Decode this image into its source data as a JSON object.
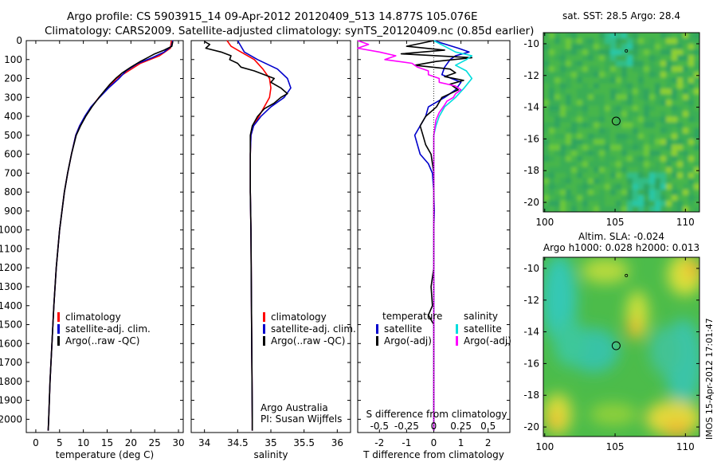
{
  "header": {
    "line1": "Argo profile: CS 5903915_14 09-Apr-2012 20120409_513 14.877S 105.076E",
    "line2": "Climatology: CARS2009. Satellite-adjusted climatology: synTS_20120409.nc (0.85d earlier)"
  },
  "side_stamp": "IMOS 15-Apr-2012 17:01:47",
  "colors": {
    "climatology": "#ff0000",
    "satellite": "#0000cc",
    "argo": "#000000",
    "argo_salinity_diff": "#ff00ff",
    "satellite_salinity_diff": "#00dddd"
  },
  "depth_axis": {
    "ticks": [
      0,
      100,
      200,
      300,
      400,
      500,
      600,
      700,
      800,
      900,
      1000,
      1100,
      1200,
      1300,
      1400,
      1500,
      1600,
      1700,
      1800,
      1900,
      2000
    ],
    "tick_labels": [
      "0",
      "100",
      "200",
      "300",
      "400",
      "500",
      "600",
      "700",
      "800",
      "900",
      "1000",
      "1100",
      "1200",
      "1300",
      "1400",
      "1500",
      "1600",
      "1700",
      "1800",
      "1900",
      "2000"
    ],
    "range": [
      0,
      2070
    ]
  },
  "chart_data": [
    {
      "type": "line",
      "title": "",
      "xlabel": "temperature (deg C)",
      "ylabel": "depth",
      "xlim": [
        -2,
        31
      ],
      "ylim": [
        2070,
        0
      ],
      "xticks": [
        0,
        5,
        10,
        15,
        20,
        25,
        30
      ],
      "xtick_labels": [
        "0",
        "5",
        "10",
        "15",
        "20",
        "25",
        "30"
      ],
      "legend": [
        "climatology",
        "satellite-adj. clim.",
        "Argo(..raw -QC)"
      ],
      "legend_position": "lower-center",
      "series": [
        {
          "name": "climatology",
          "color": "#ff0000",
          "depth": [
            0,
            40,
            80,
            120,
            160,
            200,
            250,
            300,
            350,
            400,
            450,
            500,
            600,
            700,
            800,
            1000,
            1200,
            1400,
            1600,
            1800,
            2000,
            2060
          ],
          "values": [
            28.5,
            28.3,
            26,
            22,
            19.5,
            17,
            15.2,
            13.3,
            11.7,
            10.4,
            9.2,
            8.4,
            7.5,
            6.7,
            6.0,
            5.0,
            4.3,
            3.8,
            3.4,
            3.0,
            2.7,
            2.6
          ]
        },
        {
          "name": "satellite-adj. clim.",
          "color": "#0000cc",
          "depth": [
            0,
            30,
            60,
            90,
            120,
            160,
            200,
            250,
            300,
            350,
            400,
            450,
            500,
            600,
            700,
            800,
            1000,
            1200,
            1400,
            1600,
            1800,
            2000,
            2060
          ],
          "values": [
            28.8,
            28.5,
            27,
            24.5,
            21.5,
            19,
            17.5,
            15.3,
            13.4,
            11.6,
            10.3,
            9.2,
            8.4,
            7.5,
            6.7,
            6.0,
            5.0,
            4.3,
            3.8,
            3.4,
            3.0,
            2.7,
            2.6
          ]
        },
        {
          "name": "Argo(..raw -QC)",
          "color": "#000000",
          "depth": [
            5,
            30,
            50,
            70,
            90,
            110,
            140,
            170,
            200,
            230,
            260,
            300,
            350,
            400,
            450,
            500,
            600,
            700,
            800,
            1000,
            1200,
            1400,
            1600,
            1800,
            2000,
            2060
          ],
          "values": [
            28.8,
            28.6,
            27,
            25,
            23.5,
            22,
            20,
            18.2,
            16.8,
            15.6,
            14.6,
            13.3,
            11.8,
            10.5,
            9.4,
            8.5,
            7.5,
            6.7,
            6.0,
            5.0,
            4.3,
            3.8,
            3.4,
            3.0,
            2.7,
            2.6
          ]
        }
      ]
    },
    {
      "type": "line",
      "title": "",
      "xlabel": "salinity",
      "ylabel": "",
      "xlim": [
        33.8,
        36.2
      ],
      "ylim": [
        2070,
        0
      ],
      "xticks": [
        34,
        34.5,
        35,
        35.5,
        36
      ],
      "xtick_labels": [
        "34",
        "34.5",
        "35",
        "35.5",
        "36"
      ],
      "legend": [
        "climatology",
        "satellite-adj. clim.",
        "Argo(..raw -QC)"
      ],
      "legend_position": "lower-right",
      "credits": [
        "Argo Australia",
        "PI: Susan Wijffels"
      ],
      "series": [
        {
          "name": "climatology",
          "color": "#ff0000",
          "depth": [
            0,
            30,
            60,
            100,
            150,
            200,
            250,
            300,
            350,
            400,
            450,
            500,
            600,
            800,
            1000,
            1500,
            2000,
            2060
          ],
          "values": [
            34.34,
            34.4,
            34.55,
            34.75,
            34.88,
            34.98,
            35.0,
            34.98,
            34.9,
            34.82,
            34.74,
            34.7,
            34.69,
            34.69,
            34.7,
            34.71,
            34.72,
            34.72
          ]
        },
        {
          "name": "satellite-adj. clim.",
          "color": "#0000cc",
          "depth": [
            0,
            30,
            60,
            100,
            150,
            200,
            250,
            300,
            350,
            400,
            450,
            500,
            600,
            800,
            1000,
            1500,
            2000,
            2060
          ],
          "values": [
            34.5,
            34.55,
            34.6,
            34.8,
            35.1,
            35.25,
            35.3,
            35.2,
            35.0,
            34.85,
            34.74,
            34.7,
            34.69,
            34.69,
            34.7,
            34.71,
            34.72,
            34.72
          ]
        },
        {
          "name": "Argo(..raw -QC)",
          "color": "#000000",
          "depth": [
            5,
            20,
            40,
            60,
            80,
            100,
            120,
            140,
            160,
            180,
            200,
            220,
            250,
            280,
            300,
            330,
            360,
            400,
            450,
            500,
            600,
            800,
            1000,
            1500,
            2000,
            2060
          ],
          "values": [
            34.0,
            34.08,
            34.02,
            34.25,
            34.4,
            34.38,
            34.5,
            34.55,
            34.75,
            34.9,
            35.05,
            35.0,
            35.15,
            35.25,
            35.15,
            35.05,
            34.9,
            34.8,
            34.72,
            34.69,
            34.69,
            34.69,
            34.7,
            34.71,
            34.72,
            34.72
          ]
        }
      ]
    },
    {
      "type": "line",
      "title": "",
      "xlabel": "T difference from climatology",
      "xlabel_top": "S difference from climatology",
      "ylabel": "",
      "xlim": [
        -2.8,
        2.8
      ],
      "ylim": [
        2070,
        0
      ],
      "xticks": [
        -2,
        -1,
        0,
        1,
        2
      ],
      "xtick_labels": [
        "-2",
        "-1",
        "0",
        "1",
        "2"
      ],
      "xticks_top": [
        -0.5,
        -0.25,
        0,
        0.25,
        0.5
      ],
      "xtick_labels_top": [
        "-0.5",
        "-0.25",
        "0",
        "0.25",
        "0.5"
      ],
      "legend_headers": [
        "temperature",
        "salinity"
      ],
      "legend": [
        "satellite",
        "Argo(-adj)",
        "satellite",
        "Argo(-adj)"
      ],
      "legend_position": "lower-center",
      "series": [
        {
          "name": "temperature satellite",
          "color": "#0000cc",
          "depth": [
            0,
            40,
            60,
            80,
            100,
            140,
            180,
            220,
            260,
            300,
            350,
            400,
            450,
            500,
            600,
            650,
            700,
            800,
            900,
            1000,
            1200,
            1600,
            2060
          ],
          "values": [
            0,
            0.9,
            1.3,
            0.8,
            0.6,
            0.4,
            0.3,
            1.0,
            0.8,
            0.4,
            -0.2,
            -0.3,
            -0.5,
            -0.7,
            -0.5,
            -0.2,
            -0.05,
            0,
            0.02,
            0,
            0,
            0,
            0
          ]
        },
        {
          "name": "temperature Argo(-adj)",
          "color": "#000000",
          "depth": [
            0,
            30,
            50,
            70,
            90,
            110,
            130,
            150,
            170,
            190,
            210,
            230,
            260,
            300,
            350,
            400,
            450,
            500,
            550,
            600,
            700,
            800,
            1000,
            1200,
            1300,
            1400,
            1450,
            1500,
            1600,
            2060
          ],
          "values": [
            0,
            -1,
            0.4,
            -1.2,
            1.4,
            0.1,
            -0.7,
            0.6,
            0.8,
            0.4,
            1.1,
            0.6,
            0.9,
            0.3,
            0.1,
            -0.3,
            -0.5,
            -0.4,
            -0.3,
            -0.1,
            0,
            0,
            0,
            0,
            -0.1,
            -0.05,
            -0.2,
            0,
            0,
            0
          ]
        },
        {
          "name": "salinity satellite",
          "color": "#00dddd",
          "depth": [
            0,
            30,
            60,
            80,
            100,
            130,
            160,
            200,
            250,
            300,
            350,
            400,
            450,
            500,
            600,
            800,
            1000,
            2060
          ],
          "values": [
            0,
            0.1,
            0.2,
            0.35,
            0.3,
            0.2,
            0.3,
            0.35,
            0.28,
            0.2,
            0.1,
            0.05,
            0.02,
            0,
            0,
            0,
            0,
            0
          ]
        },
        {
          "name": "salinity Argo(-adj)",
          "color": "#ff00ff",
          "depth": [
            0,
            20,
            40,
            60,
            80,
            100,
            120,
            140,
            160,
            180,
            200,
            220,
            240,
            260,
            280,
            300,
            320,
            340,
            380,
            420,
            500,
            600,
            800,
            1000,
            2060
          ],
          "values": [
            -0.7,
            -0.6,
            -0.7,
            -0.5,
            -0.35,
            -0.45,
            -0.2,
            -0.15,
            -0.05,
            -0.05,
            0.05,
            0.05,
            0.2,
            0.25,
            0.2,
            0.18,
            0.12,
            0.1,
            0.05,
            0.02,
            0,
            0,
            0,
            0,
            0
          ]
        }
      ]
    },
    {
      "type": "heatmap",
      "title": "sat. SST: 28.5 Argo: 28.4",
      "xlim": [
        99.9,
        111
      ],
      "ylim": [
        -20.6,
        -9.3
      ],
      "xticks": [
        100,
        105,
        110
      ],
      "xtick_labels": [
        "100",
        "105",
        "110"
      ],
      "yticks": [
        -10,
        -12,
        -14,
        -16,
        -18,
        -20
      ],
      "ytick_labels": [
        "-10",
        "-12",
        "-14",
        "-16",
        "-18",
        "-20"
      ],
      "markers": [
        {
          "lon": 105.076,
          "lat": -14.877,
          "symbol": "circle"
        },
        {
          "lon": 105.8,
          "lat": -10.45,
          "symbol": "dot"
        }
      ]
    },
    {
      "type": "heatmap",
      "title": "Altim. SLA: -0.024",
      "subtitle": "Argo h1000: 0.028 h2000: 0.013",
      "xlim": [
        99.9,
        111
      ],
      "ylim": [
        -20.6,
        -9.3
      ],
      "xticks": [
        100,
        105,
        110
      ],
      "xtick_labels": [
        "100",
        "105",
        "110"
      ],
      "yticks": [
        -10,
        -12,
        -14,
        -16,
        -18,
        -20
      ],
      "ytick_labels": [
        "-10",
        "-12",
        "-14",
        "-16",
        "-18",
        "-20"
      ],
      "markers": [
        {
          "lon": 105.076,
          "lat": -14.877,
          "symbol": "circle"
        },
        {
          "lon": 105.8,
          "lat": -10.45,
          "symbol": "dot"
        }
      ]
    }
  ]
}
